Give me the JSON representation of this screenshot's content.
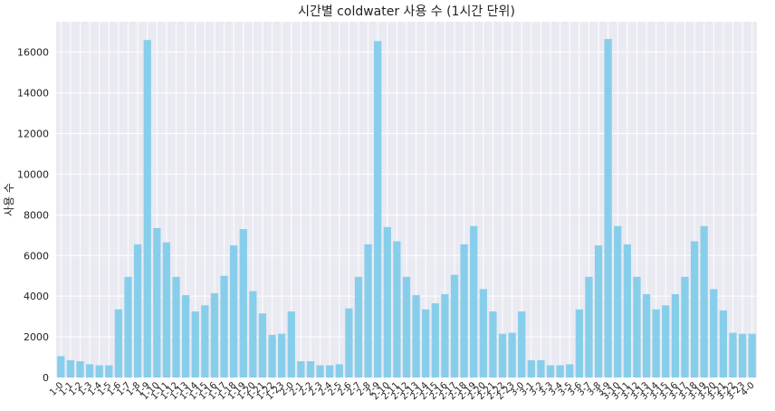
{
  "chart_data": {
    "type": "bar",
    "title": "시간별 coldwater 사용 수 (1시간 단위)",
    "xlabel": "",
    "ylabel": "사용 수",
    "ylim": [
      0,
      17500
    ],
    "yticks": [
      0,
      2000,
      4000,
      6000,
      8000,
      10000,
      12000,
      14000,
      16000
    ],
    "grid": true,
    "bar_color": "#87CEEB",
    "background_color": "#EAEAF2",
    "categories": [
      "1-0",
      "1-1",
      "1-2",
      "1-3",
      "1-4",
      "1-5",
      "1-6",
      "1-7",
      "1-8",
      "1-9",
      "1-10",
      "1-11",
      "1-12",
      "1-13",
      "1-14",
      "1-15",
      "1-16",
      "1-17",
      "1-18",
      "1-19",
      "1-20",
      "1-21",
      "1-22",
      "1-23",
      "2-0",
      "2-1",
      "2-2",
      "2-3",
      "2-4",
      "2-5",
      "2-6",
      "2-7",
      "2-8",
      "2-9",
      "2-10",
      "2-11",
      "2-12",
      "2-13",
      "2-14",
      "2-15",
      "2-16",
      "2-17",
      "2-18",
      "2-19",
      "2-20",
      "2-21",
      "2-22",
      "2-23",
      "3-0",
      "3-1",
      "3-2",
      "3-3",
      "3-4",
      "3-5",
      "3-6",
      "3-7",
      "3-8",
      "3-9",
      "3-10",
      "3-11",
      "3-12",
      "3-13",
      "3-14",
      "3-15",
      "3-16",
      "3-17",
      "3-18",
      "3-19",
      "3-20",
      "3-21",
      "3-22",
      "3-23",
      "4-0"
    ],
    "values": [
      1050,
      850,
      800,
      650,
      600,
      600,
      3350,
      4950,
      6550,
      16600,
      7350,
      6650,
      4950,
      4050,
      3250,
      3550,
      4150,
      5000,
      6500,
      7300,
      4250,
      3150,
      2100,
      2150,
      3250,
      800,
      800,
      600,
      600,
      650,
      3400,
      4950,
      6550,
      16550,
      7400,
      6700,
      4950,
      4050,
      3350,
      3650,
      4100,
      5050,
      6550,
      7450,
      4350,
      3250,
      2150,
      2200,
      3250,
      850,
      850,
      600,
      600,
      650,
      3350,
      4950,
      6500,
      16650,
      7450,
      6550,
      4950,
      4100,
      3350,
      3550,
      4100,
      4950,
      6700,
      7450,
      4350,
      3300,
      2200,
      2150,
      2150
    ]
  }
}
